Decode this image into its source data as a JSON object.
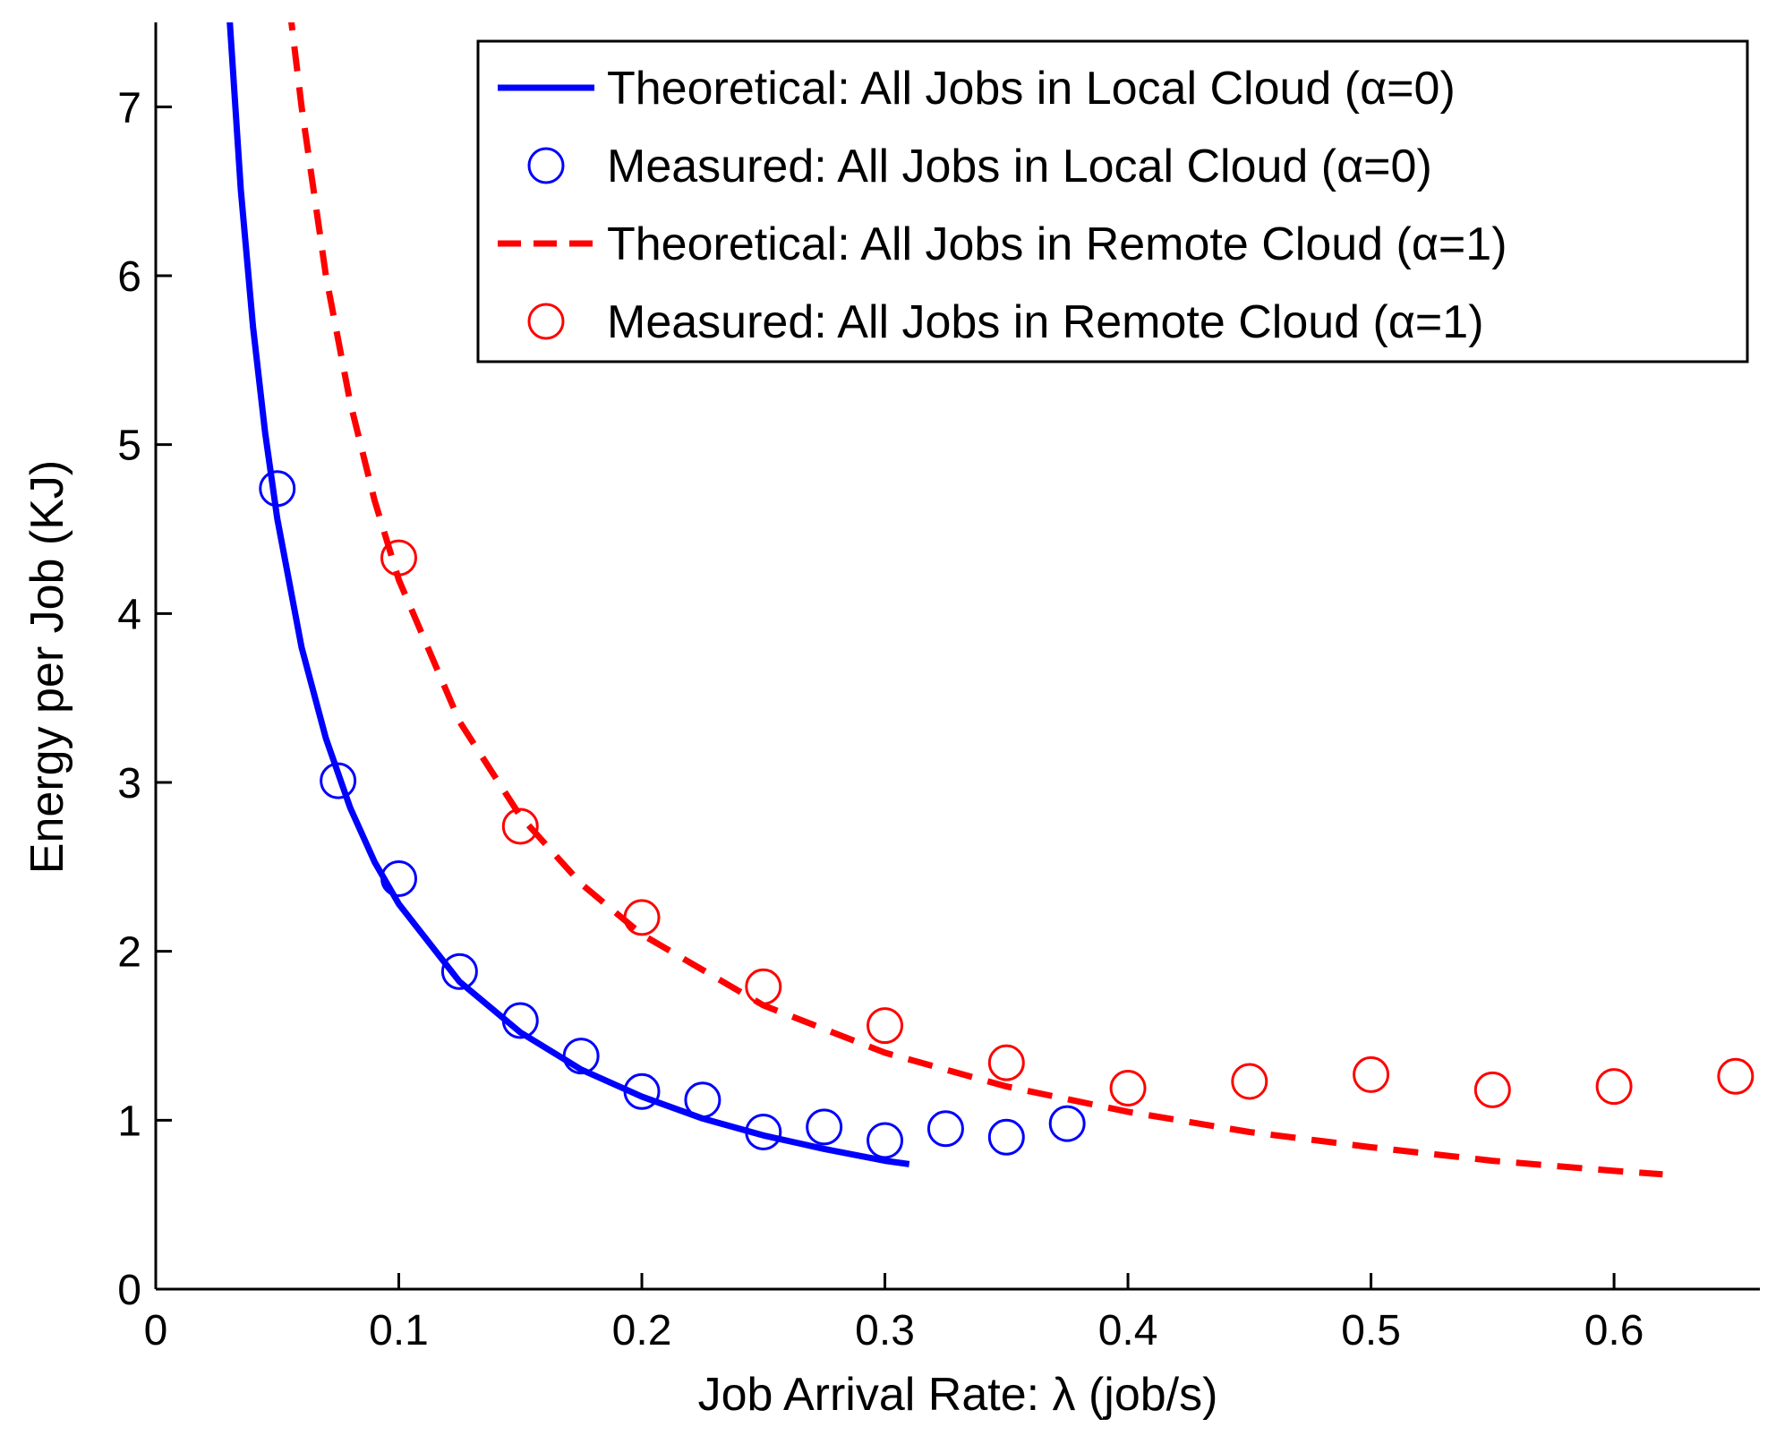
{
  "chart_data": {
    "type": "line",
    "title": "",
    "xlabel": "Job Arrival Rate: λ (job/s)",
    "ylabel": "Energy per Job (KJ)",
    "xlim": [
      0,
      0.66
    ],
    "ylim": [
      0,
      7.5
    ],
    "xticks": [
      0,
      0.1,
      0.2,
      0.3,
      0.4,
      0.5,
      0.6
    ],
    "xtick_labels": [
      "0",
      "0.1",
      "0.2",
      "0.3",
      "0.4",
      "0.5",
      "0.6"
    ],
    "yticks": [
      0,
      1,
      2,
      3,
      4,
      5,
      6,
      7
    ],
    "ytick_labels": [
      "0",
      "1",
      "2",
      "3",
      "4",
      "5",
      "6",
      "7"
    ],
    "grid": false,
    "legend_position": "top-right",
    "series": [
      {
        "name": "Theoretical: All Jobs in Local Cloud (α=0)",
        "kind": "line",
        "style": "solid",
        "color": "#0000ff",
        "x": [
          0.03,
          0.035,
          0.04,
          0.045,
          0.05,
          0.06,
          0.07,
          0.08,
          0.09,
          0.1,
          0.125,
          0.15,
          0.175,
          0.2,
          0.225,
          0.25,
          0.275,
          0.3,
          0.31
        ],
        "y": [
          7.6,
          6.51,
          5.7,
          5.07,
          4.56,
          3.8,
          3.26,
          2.85,
          2.53,
          2.28,
          1.82,
          1.52,
          1.3,
          1.14,
          1.01,
          0.91,
          0.83,
          0.76,
          0.74
        ]
      },
      {
        "name": "Measured: All Jobs in Local Cloud (α=0)",
        "kind": "scatter",
        "marker": "circle-open",
        "color": "#0000ff",
        "x": [
          0.05,
          0.075,
          0.1,
          0.125,
          0.15,
          0.175,
          0.2,
          0.225,
          0.25,
          0.275,
          0.3,
          0.325,
          0.35,
          0.375
        ],
        "y": [
          4.74,
          3.01,
          2.43,
          1.88,
          1.59,
          1.38,
          1.17,
          1.12,
          0.93,
          0.96,
          0.88,
          0.95,
          0.9,
          0.98
        ]
      },
      {
        "name": "Theoretical: All Jobs in Remote Cloud (α=1)",
        "kind": "line",
        "style": "dashed",
        "color": "#ff0000",
        "x": [
          0.055,
          0.06,
          0.07,
          0.08,
          0.09,
          0.1,
          0.125,
          0.15,
          0.175,
          0.2,
          0.25,
          0.3,
          0.35,
          0.4,
          0.45,
          0.5,
          0.55,
          0.6,
          0.62
        ],
        "y": [
          7.6,
          7.0,
          6.0,
          5.25,
          4.67,
          4.2,
          3.36,
          2.8,
          2.4,
          2.1,
          1.68,
          1.4,
          1.2,
          1.05,
          0.93,
          0.84,
          0.76,
          0.7,
          0.68
        ]
      },
      {
        "name": "Measured: All Jobs in Remote Cloud (α=1)",
        "kind": "scatter",
        "marker": "circle-open",
        "color": "#ff0000",
        "x": [
          0.1,
          0.15,
          0.2,
          0.25,
          0.3,
          0.35,
          0.4,
          0.45,
          0.5,
          0.55,
          0.6,
          0.65
        ],
        "y": [
          4.33,
          2.74,
          2.2,
          1.79,
          1.56,
          1.34,
          1.19,
          1.23,
          1.27,
          1.18,
          1.2,
          1.26
        ]
      }
    ]
  }
}
